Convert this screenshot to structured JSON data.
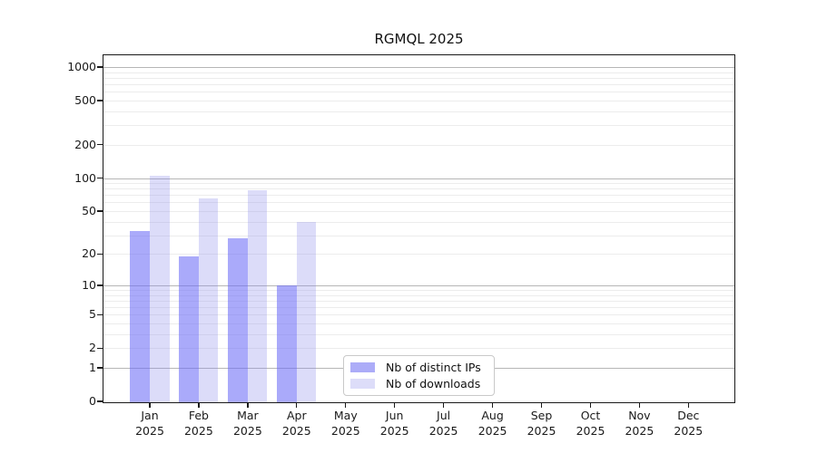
{
  "title": "RGMQL 2025",
  "colors": {
    "ips_bar": "rgba(108,108,246,0.58)",
    "downloads_bar": "rgba(138,138,235,0.30)",
    "ips_swatch": "#acacf8",
    "downloads_swatch": "#ddddf9",
    "grid_major": "#b6b6b6",
    "grid_minor": "#ececec",
    "axis": "#1a1a1a"
  },
  "legend": {
    "items": [
      {
        "label": "Nb of distinct IPs",
        "series": "ips"
      },
      {
        "label": "Nb of downloads",
        "series": "downloads"
      }
    ]
  },
  "y_axis": {
    "tick_labels": [
      "0",
      "1",
      "2",
      "5",
      "10",
      "20",
      "50",
      "100",
      "200",
      "500",
      "1000"
    ],
    "tick_values": [
      0,
      1,
      2,
      5,
      10,
      20,
      50,
      100,
      200,
      500,
      1000
    ],
    "major_gridlines": [
      1,
      10,
      100,
      1000
    ],
    "minor_gridlines": [
      2,
      3,
      4,
      5,
      6,
      7,
      8,
      9,
      20,
      30,
      40,
      50,
      60,
      70,
      80,
      90,
      200,
      300,
      400,
      500,
      600,
      700,
      800,
      900
    ]
  },
  "x_axis": {
    "months": [
      "Jan",
      "Feb",
      "Mar",
      "Apr",
      "May",
      "Jun",
      "Jul",
      "Aug",
      "Sep",
      "Oct",
      "Nov",
      "Dec"
    ],
    "year": "2025"
  },
  "chart_data": {
    "type": "bar",
    "categories": [
      "Jan 2025",
      "Feb 2025",
      "Mar 2025",
      "Apr 2025",
      "May 2025",
      "Jun 2025",
      "Jul 2025",
      "Aug 2025",
      "Sep 2025",
      "Oct 2025",
      "Nov 2025",
      "Dec 2025"
    ],
    "series": [
      {
        "name": "Nb of distinct IPs",
        "values": [
          33,
          19,
          28,
          10,
          null,
          null,
          null,
          null,
          null,
          null,
          null,
          null
        ]
      },
      {
        "name": "Nb of downloads",
        "values": [
          105,
          65,
          77,
          40,
          null,
          null,
          null,
          null,
          null,
          null,
          null,
          null
        ]
      }
    ],
    "title": "RGMQL 2025",
    "xlabel": "",
    "ylabel": "",
    "yscale": "log1p",
    "y_ticks": [
      0,
      1,
      2,
      5,
      10,
      20,
      50,
      100,
      200,
      500,
      1000
    ],
    "ylim": [
      0,
      1280
    ],
    "grid": true,
    "legend_position": "lower center"
  }
}
